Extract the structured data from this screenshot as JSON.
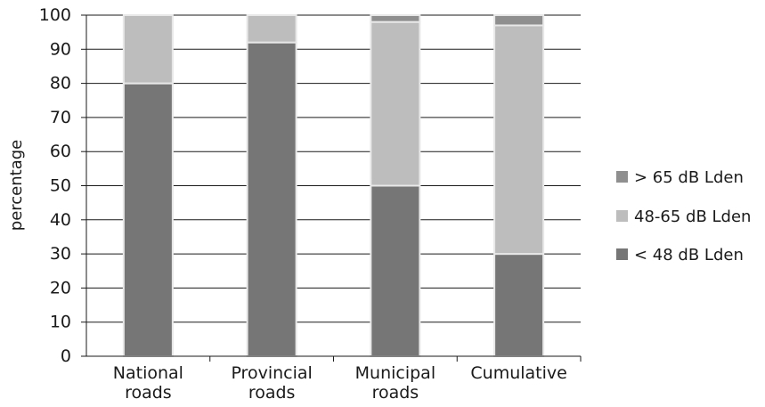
{
  "chart_data": {
    "type": "bar",
    "stacked": true,
    "title": "",
    "xlabel": "",
    "ylabel": "percentage",
    "ylim": [
      0,
      100
    ],
    "yticks": [
      0,
      10,
      20,
      30,
      40,
      50,
      60,
      70,
      80,
      90,
      100
    ],
    "grid": true,
    "legend_position": "right",
    "categories": [
      [
        "National",
        "roads"
      ],
      [
        "Provincial",
        "roads"
      ],
      [
        "Municipal",
        "roads"
      ],
      [
        "Cumulative"
      ]
    ],
    "series": [
      {
        "name": "< 48 dB Lden",
        "color": "#767676",
        "values": [
          80,
          92,
          50,
          30
        ]
      },
      {
        "name": "48-65 dB Lden",
        "color": "#bdbdbd",
        "values": [
          20,
          8,
          48,
          67
        ]
      },
      {
        "name": "> 65 dB Lden",
        "color": "#8f8f8f",
        "values": [
          0,
          0,
          2,
          3
        ]
      }
    ],
    "legend_order": [
      "> 65 dB Lden",
      "48-65 dB Lden",
      "< 48 dB Lden"
    ]
  }
}
